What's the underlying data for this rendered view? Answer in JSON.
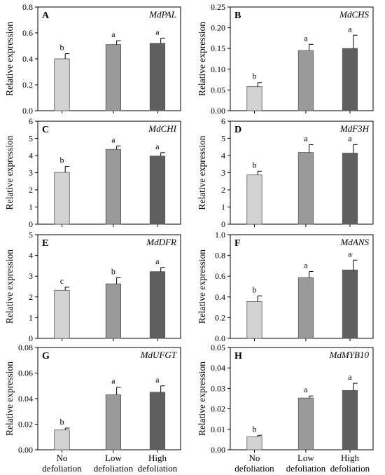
{
  "figure": {
    "ylabel": "Relative expression",
    "xcategories": [
      [
        "No",
        "defoliation"
      ],
      [
        "Low",
        "defoliation"
      ],
      [
        "High",
        "defoliation"
      ]
    ]
  },
  "chart_data": [
    {
      "panel": "A",
      "title": "MdPAL",
      "type": "bar",
      "categories": [
        "No defoliation",
        "Low defoliation",
        "High defoliation"
      ],
      "values": [
        0.4,
        0.51,
        0.52
      ],
      "errors": [
        0.04,
        0.03,
        0.04
      ],
      "letters": [
        "b",
        "a",
        "a"
      ],
      "ylim": [
        0,
        0.8
      ],
      "yticks": [
        "0.0",
        "0.2",
        "0.4",
        "0.6",
        "0.8"
      ]
    },
    {
      "panel": "B",
      "title": "MdCHS",
      "type": "bar",
      "categories": [
        "No defoliation",
        "Low defoliation",
        "High defoliation"
      ],
      "values": [
        0.058,
        0.145,
        0.15
      ],
      "errors": [
        0.01,
        0.015,
        0.032
      ],
      "letters": [
        "b",
        "a",
        "a"
      ],
      "ylim": [
        0,
        0.25
      ],
      "yticks": [
        "0.00",
        "0.05",
        "0.10",
        "0.15",
        "0.20",
        "0.25"
      ]
    },
    {
      "panel": "C",
      "title": "MdCHI",
      "type": "bar",
      "categories": [
        "No defoliation",
        "Low defoliation",
        "High defoliation"
      ],
      "values": [
        3.02,
        4.36,
        3.97
      ],
      "errors": [
        0.35,
        0.2,
        0.2
      ],
      "letters": [
        "b",
        "a",
        "a"
      ],
      "ylim": [
        0,
        6
      ],
      "yticks": [
        "0",
        "1",
        "2",
        "3",
        "4",
        "5",
        "6"
      ]
    },
    {
      "panel": "D",
      "title": "MdF3H",
      "type": "bar",
      "categories": [
        "No defoliation",
        "Low defoliation",
        "High defoliation"
      ],
      "values": [
        2.87,
        4.18,
        4.14
      ],
      "errors": [
        0.22,
        0.45,
        0.5
      ],
      "letters": [
        "b",
        "a",
        "a"
      ],
      "ylim": [
        0,
        6
      ],
      "yticks": [
        "0",
        "1",
        "2",
        "3",
        "4",
        "5",
        "6"
      ]
    },
    {
      "panel": "E",
      "title": "MdDFR",
      "type": "bar",
      "categories": [
        "No defoliation",
        "Low defoliation",
        "High defoliation"
      ],
      "values": [
        2.32,
        2.63,
        3.22
      ],
      "errors": [
        0.15,
        0.3,
        0.2
      ],
      "letters": [
        "c",
        "b",
        "a"
      ],
      "ylim": [
        0,
        5
      ],
      "yticks": [
        "0",
        "1",
        "2",
        "3",
        "4",
        "5"
      ]
    },
    {
      "panel": "F",
      "title": "MdANS",
      "type": "bar",
      "categories": [
        "No defoliation",
        "Low defoliation",
        "High defoliation"
      ],
      "values": [
        0.355,
        0.585,
        0.66
      ],
      "errors": [
        0.055,
        0.06,
        0.095
      ],
      "letters": [
        "b",
        "a",
        "a"
      ],
      "ylim": [
        0,
        1.0
      ],
      "yticks": [
        "0.0",
        "0.2",
        "0.4",
        "0.6",
        "0.8",
        "1.0"
      ]
    },
    {
      "panel": "G",
      "title": "MdUFGT",
      "type": "bar",
      "categories": [
        "No defoliation",
        "Low defoliation",
        "High defoliation"
      ],
      "values": [
        0.0155,
        0.043,
        0.045
      ],
      "errors": [
        0.0015,
        0.006,
        0.005
      ],
      "letters": [
        "b",
        "a",
        "a"
      ],
      "ylim": [
        0,
        0.08
      ],
      "yticks": [
        "0.00",
        "0.02",
        "0.04",
        "0.06",
        "0.08"
      ]
    },
    {
      "panel": "H",
      "title": "MdMYB10",
      "type": "bar",
      "categories": [
        "No defoliation",
        "Low defoliation",
        "High defoliation"
      ],
      "values": [
        0.0063,
        0.0253,
        0.029
      ],
      "errors": [
        0.0008,
        0.001,
        0.0035
      ],
      "letters": [
        "b",
        "a",
        "a"
      ],
      "ylim": [
        0,
        0.05
      ],
      "yticks": [
        "0.00",
        "0.01",
        "0.02",
        "0.03",
        "0.04",
        "0.05"
      ]
    }
  ],
  "colors": {
    "bars": [
      "#d3d3d3",
      "#9a9a9a",
      "#5f5f5f"
    ],
    "axis": "#000000"
  }
}
